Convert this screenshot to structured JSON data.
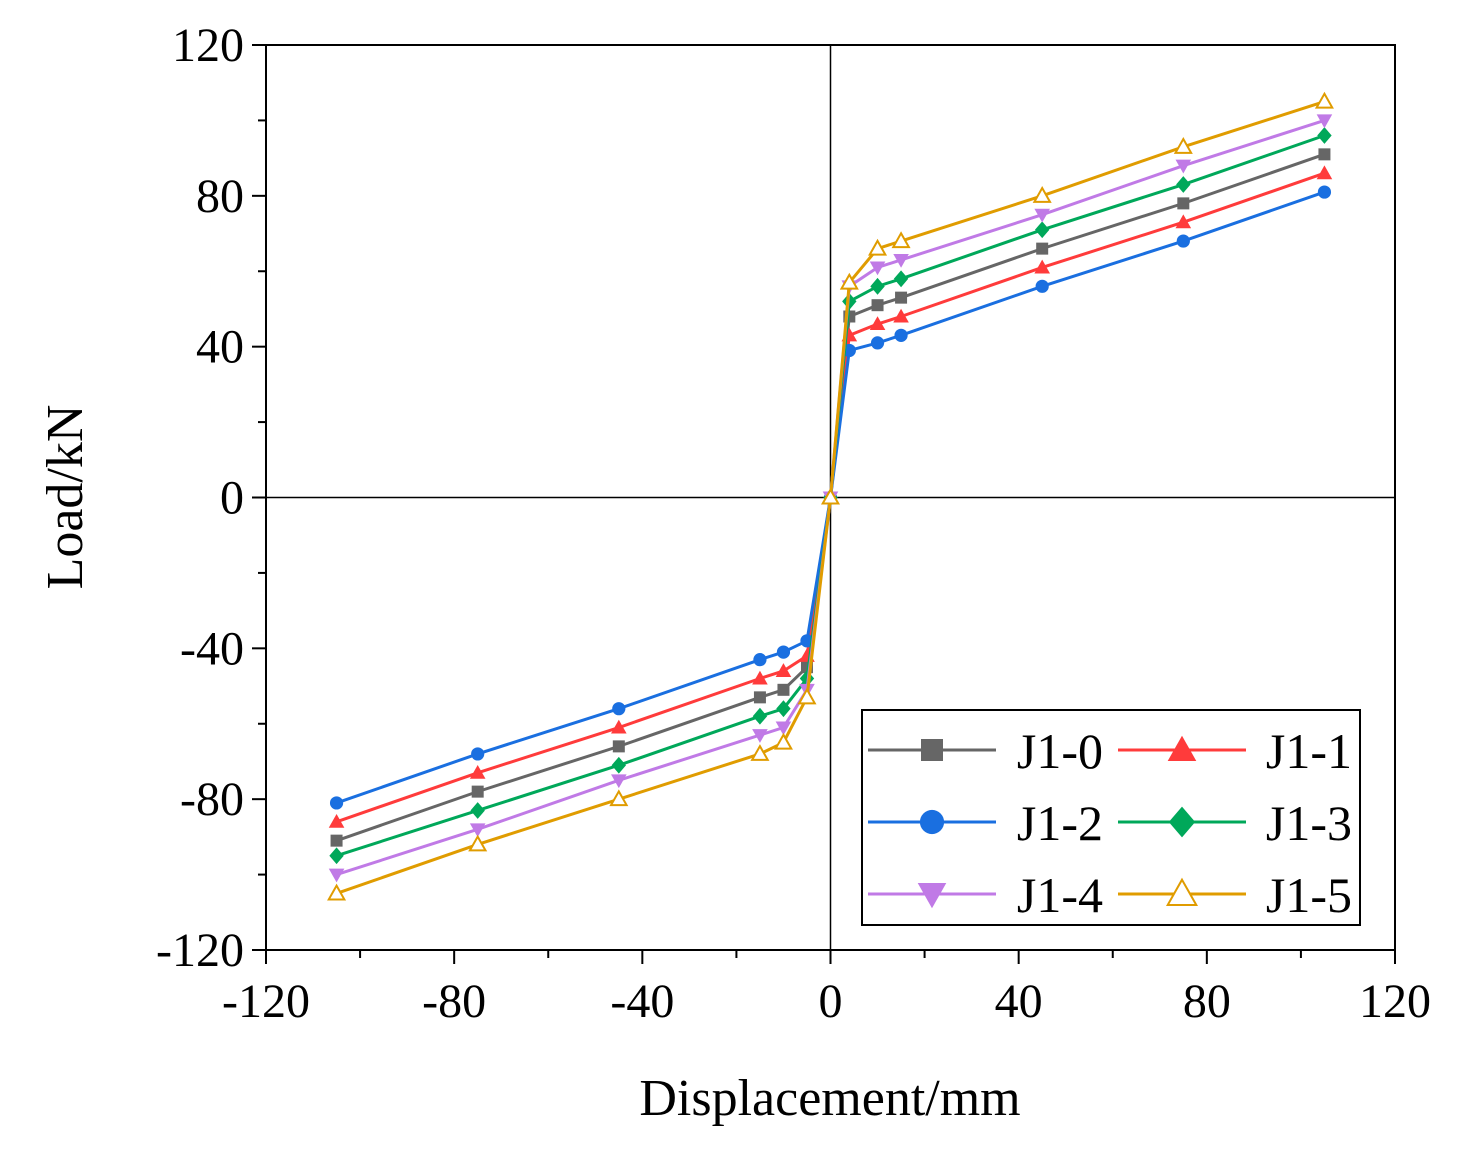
{
  "chart_data": {
    "type": "line",
    "title": "",
    "xlabel": "Displacement/mm",
    "ylabel": "Load/kN",
    "xlim": [
      -120,
      120
    ],
    "ylim": [
      -120,
      120
    ],
    "xticks": [
      "-120",
      "-80",
      "-40",
      "0",
      "40",
      "80",
      "120"
    ],
    "yticks": [
      "120",
      "80",
      "40",
      "0",
      "-40",
      "-80",
      "-120"
    ],
    "xtick_values": [
      -120,
      -80,
      -40,
      0,
      40,
      80,
      120
    ],
    "ytick_values": [
      120,
      80,
      40,
      0,
      -40,
      -80,
      -120
    ],
    "legend_position": "bottom-right",
    "x": [
      -105,
      -75,
      -45,
      -15,
      -10,
      -5,
      0,
      4,
      10,
      15,
      45,
      75,
      105
    ],
    "series": [
      {
        "name": "J1-0",
        "color": "#666666",
        "marker": "square",
        "values": [
          -91,
          -78,
          -66,
          -53,
          -51,
          -45,
          0,
          48,
          51,
          53,
          66,
          78,
          91
        ]
      },
      {
        "name": "J1-1",
        "color": "#ff3b3b",
        "marker": "triangle-up",
        "values": [
          -86,
          -73,
          -61,
          -48,
          -46,
          -42,
          0,
          43,
          46,
          48,
          61,
          73,
          86
        ]
      },
      {
        "name": "J1-2",
        "color": "#1a6fe0",
        "marker": "circle",
        "values": [
          -81,
          -68,
          -56,
          -43,
          -41,
          -38,
          0,
          39,
          41,
          43,
          56,
          68,
          81
        ]
      },
      {
        "name": "J1-3",
        "color": "#00a85a",
        "marker": "diamond",
        "values": [
          -95,
          -83,
          -71,
          -58,
          -56,
          -48,
          0,
          52,
          56,
          58,
          71,
          83,
          96
        ]
      },
      {
        "name": "J1-4",
        "color": "#c07ae6",
        "marker": "triangle-down",
        "values": [
          -100,
          -88,
          -75,
          -63,
          -61,
          -51,
          0,
          56,
          61,
          63,
          75,
          88,
          100
        ]
      },
      {
        "name": "J1-5",
        "color": "#e09c00",
        "marker": "triangle-open",
        "values": [
          -105,
          -92,
          -80,
          -68,
          -65,
          -53,
          0,
          57,
          66,
          68,
          80,
          93,
          105
        ]
      }
    ]
  }
}
